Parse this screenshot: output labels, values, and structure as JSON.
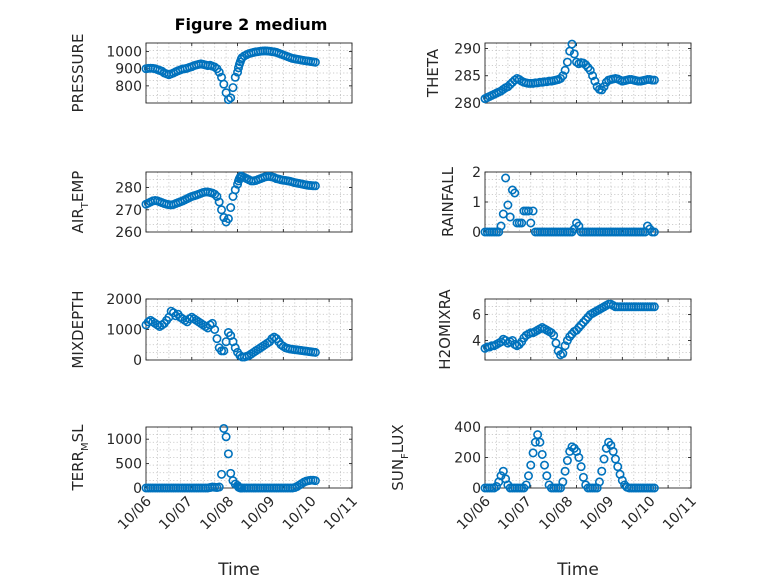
{
  "figure_title": "Figure 2 medium",
  "colors": {
    "marker": "#0072BD",
    "axis": "#262626",
    "grid": "#bfbfbf"
  },
  "chart_data": [
    {
      "id": "pressure",
      "type": "scatter",
      "ylabel": "PRESSURE",
      "ylim": [
        700,
        1050
      ],
      "yticks": [
        800,
        900,
        1000
      ],
      "xlim": [
        0,
        4.5
      ],
      "xticks": [],
      "x": [
        0.0,
        0.05,
        0.1,
        0.15,
        0.2,
        0.25,
        0.3,
        0.35,
        0.4,
        0.45,
        0.5,
        0.55,
        0.6,
        0.65,
        0.7,
        0.75,
        0.8,
        0.85,
        0.9,
        0.95,
        1.0,
        1.05,
        1.1,
        1.15,
        1.2,
        1.25,
        1.3,
        1.35,
        1.4,
        1.45,
        1.5,
        1.55,
        1.6,
        1.65,
        1.7,
        1.75,
        1.8,
        1.85,
        1.9,
        1.95,
        2.0,
        2.02,
        2.04,
        2.06,
        2.08,
        2.1,
        2.15,
        2.2,
        2.25,
        2.3,
        2.35,
        2.4,
        2.45,
        2.5,
        2.55,
        2.6,
        2.65,
        2.7,
        2.75,
        2.8,
        2.85,
        2.9,
        2.95,
        3.0,
        3.05,
        3.1,
        3.15,
        3.2,
        3.25,
        3.3,
        3.35,
        3.4,
        3.45,
        3.5,
        3.55,
        3.6,
        3.65,
        3.7
      ],
      "y": [
        900,
        902,
        903,
        902,
        900,
        895,
        890,
        885,
        875,
        870,
        865,
        870,
        875,
        882,
        888,
        893,
        898,
        900,
        903,
        908,
        912,
        918,
        922,
        925,
        928,
        925,
        922,
        918,
        920,
        915,
        910,
        900,
        880,
        850,
        810,
        760,
        720,
        730,
        790,
        850,
        880,
        905,
        925,
        940,
        955,
        965,
        975,
        982,
        988,
        992,
        995,
        998,
        1000,
        1002,
        1003,
        1004,
        1003,
        1002,
        1000,
        998,
        995,
        990,
        985,
        980,
        975,
        970,
        965,
        960,
        958,
        955,
        953,
        950,
        948,
        946,
        944,
        942,
        940,
        938
      ]
    },
    {
      "id": "theta",
      "type": "scatter",
      "ylabel": "THETA",
      "ylim": [
        280,
        291
      ],
      "yticks": [
        280,
        285,
        290
      ],
      "xlim": [
        0,
        4.5
      ],
      "xticks": [],
      "x": [
        0.0,
        0.05,
        0.1,
        0.15,
        0.2,
        0.25,
        0.3,
        0.35,
        0.4,
        0.45,
        0.5,
        0.55,
        0.6,
        0.65,
        0.7,
        0.75,
        0.8,
        0.85,
        0.9,
        0.95,
        1.0,
        1.05,
        1.1,
        1.15,
        1.2,
        1.25,
        1.3,
        1.35,
        1.4,
        1.45,
        1.5,
        1.55,
        1.6,
        1.65,
        1.7,
        1.75,
        1.8,
        1.85,
        1.9,
        1.95,
        2.0,
        2.05,
        2.1,
        2.15,
        2.2,
        2.25,
        2.3,
        2.35,
        2.4,
        2.45,
        2.5,
        2.55,
        2.6,
        2.65,
        2.7,
        2.75,
        2.8,
        2.85,
        2.9,
        2.95,
        3.0,
        3.05,
        3.1,
        3.15,
        3.2,
        3.25,
        3.3,
        3.35,
        3.4,
        3.45,
        3.5,
        3.55,
        3.6,
        3.65,
        3.7
      ],
      "y": [
        280.8,
        281.0,
        281.2,
        281.4,
        281.6,
        281.8,
        282.0,
        282.2,
        282.5,
        282.8,
        283.0,
        283.4,
        283.8,
        284.2,
        284.5,
        284.3,
        284.0,
        283.8,
        283.7,
        283.6,
        283.6,
        283.6,
        283.7,
        283.7,
        283.8,
        283.8,
        283.9,
        283.9,
        284.0,
        284.0,
        284.1,
        284.2,
        284.3,
        284.5,
        285.0,
        286.0,
        287.5,
        289.5,
        290.8,
        289.0,
        287.5,
        287.2,
        287.4,
        287.3,
        287.0,
        286.5,
        286.0,
        285.0,
        284.0,
        283.0,
        282.5,
        282.4,
        283.0,
        283.8,
        284.2,
        284.3,
        284.4,
        284.5,
        284.4,
        284.2,
        284.0,
        284.1,
        284.2,
        284.3,
        284.3,
        284.2,
        284.1,
        284.0,
        284.0,
        284.1,
        284.2,
        284.3,
        284.3,
        284.2,
        284.2
      ]
    },
    {
      "id": "air_temp",
      "type": "scatter",
      "ylabel_main": "AIR",
      "ylabel_sub": "T",
      "ylabel_rest": "EMP",
      "ylim": [
        260,
        287
      ],
      "yticks": [
        260,
        270,
        280
      ],
      "xlim": [
        0,
        4.5
      ],
      "xticks": [],
      "x": [
        0.0,
        0.05,
        0.1,
        0.15,
        0.2,
        0.25,
        0.3,
        0.35,
        0.4,
        0.45,
        0.5,
        0.55,
        0.6,
        0.65,
        0.7,
        0.75,
        0.8,
        0.85,
        0.9,
        0.95,
        1.0,
        1.05,
        1.1,
        1.15,
        1.2,
        1.25,
        1.3,
        1.35,
        1.4,
        1.45,
        1.5,
        1.55,
        1.6,
        1.65,
        1.7,
        1.75,
        1.8,
        1.85,
        1.9,
        1.95,
        2.0,
        2.02,
        2.04,
        2.06,
        2.08,
        2.1,
        2.15,
        2.2,
        2.25,
        2.3,
        2.35,
        2.4,
        2.45,
        2.5,
        2.55,
        2.6,
        2.65,
        2.7,
        2.75,
        2.8,
        2.85,
        2.9,
        2.95,
        3.0,
        3.05,
        3.1,
        3.15,
        3.2,
        3.25,
        3.3,
        3.35,
        3.4,
        3.45,
        3.5,
        3.55,
        3.6,
        3.65,
        3.7
      ],
      "y": [
        272.5,
        273.0,
        273.5,
        274.0,
        274.2,
        274.0,
        273.6,
        273.2,
        272.8,
        272.5,
        272.3,
        272.2,
        272.4,
        272.8,
        273.2,
        273.6,
        274.0,
        274.5,
        275.0,
        275.5,
        276.0,
        276.3,
        276.6,
        277.0,
        277.4,
        277.8,
        278.0,
        278.0,
        277.8,
        277.5,
        277.0,
        276.0,
        273.5,
        270.0,
        266.5,
        264.5,
        266.0,
        271.0,
        276.0,
        279.0,
        281.5,
        283.0,
        284.0,
        284.8,
        285.2,
        285.0,
        284.5,
        284.0,
        283.5,
        283.0,
        283.0,
        283.2,
        283.6,
        284.0,
        284.4,
        284.8,
        285.0,
        285.0,
        284.8,
        284.5,
        284.0,
        283.8,
        283.5,
        283.3,
        283.2,
        283.0,
        282.8,
        282.5,
        282.2,
        282.0,
        281.8,
        281.6,
        281.4,
        281.2,
        281.0,
        280.9,
        280.8,
        280.8
      ]
    },
    {
      "id": "rainfall",
      "type": "scatter",
      "ylabel": "RAINFALL",
      "ylim": [
        0,
        2
      ],
      "yticks": [
        0,
        1,
        2
      ],
      "xlim": [
        0,
        4.5
      ],
      "xticks": [],
      "x": [
        0.0,
        0.05,
        0.1,
        0.15,
        0.2,
        0.25,
        0.3,
        0.35,
        0.4,
        0.45,
        0.5,
        0.55,
        0.6,
        0.65,
        0.7,
        0.75,
        0.8,
        0.85,
        0.9,
        0.95,
        1.0,
        1.05,
        1.1,
        1.15,
        1.2,
        1.25,
        1.3,
        1.35,
        1.4,
        1.45,
        1.5,
        1.55,
        1.6,
        1.65,
        1.7,
        1.75,
        1.8,
        1.85,
        1.9,
        1.95,
        2.0,
        2.05,
        2.1,
        2.15,
        2.2,
        2.25,
        2.3,
        2.35,
        2.4,
        2.45,
        2.5,
        2.55,
        2.6,
        2.65,
        2.7,
        2.75,
        2.8,
        2.85,
        2.9,
        2.95,
        3.0,
        3.05,
        3.1,
        3.15,
        3.2,
        3.25,
        3.3,
        3.35,
        3.4,
        3.45,
        3.5,
        3.55,
        3.6,
        3.65,
        3.7
      ],
      "y": [
        0,
        0,
        0,
        0,
        0,
        0,
        0,
        0.2,
        0.6,
        1.8,
        0.9,
        0.5,
        1.4,
        1.3,
        0.3,
        0.3,
        0.3,
        0.7,
        0.7,
        0.7,
        0.3,
        0.7,
        0,
        0,
        0,
        0,
        0,
        0,
        0,
        0,
        0,
        0,
        0,
        0,
        0,
        0,
        0,
        0,
        0,
        0.1,
        0.3,
        0.2,
        0,
        0,
        0,
        0,
        0,
        0,
        0,
        0,
        0,
        0,
        0,
        0,
        0,
        0,
        0,
        0,
        0,
        0,
        0,
        0,
        0,
        0,
        0,
        0,
        0,
        0,
        0,
        0,
        0,
        0.2,
        0.1,
        0,
        0
      ]
    },
    {
      "id": "mixdepth",
      "type": "scatter",
      "ylabel": "MIXDEPTH",
      "ylim": [
        0,
        2000
      ],
      "yticks": [
        0,
        1000,
        2000
      ],
      "xlim": [
        0,
        4.5
      ],
      "xticks": [],
      "x": [
        0.0,
        0.05,
        0.1,
        0.15,
        0.2,
        0.25,
        0.3,
        0.35,
        0.4,
        0.45,
        0.5,
        0.55,
        0.6,
        0.65,
        0.7,
        0.75,
        0.8,
        0.85,
        0.9,
        0.95,
        1.0,
        1.05,
        1.1,
        1.15,
        1.2,
        1.25,
        1.3,
        1.35,
        1.4,
        1.45,
        1.5,
        1.55,
        1.6,
        1.65,
        1.7,
        1.75,
        1.8,
        1.85,
        1.9,
        1.95,
        2.0,
        2.05,
        2.1,
        2.15,
        2.2,
        2.25,
        2.3,
        2.35,
        2.4,
        2.45,
        2.5,
        2.55,
        2.6,
        2.65,
        2.7,
        2.75,
        2.8,
        2.85,
        2.9,
        2.95,
        3.0,
        3.05,
        3.1,
        3.15,
        3.2,
        3.25,
        3.3,
        3.35,
        3.4,
        3.45,
        3.5,
        3.55,
        3.6,
        3.65,
        3.7
      ],
      "y": [
        1150,
        1250,
        1300,
        1250,
        1200,
        1150,
        1100,
        1150,
        1200,
        1300,
        1400,
        1600,
        1550,
        1450,
        1500,
        1400,
        1350,
        1300,
        1250,
        1350,
        1400,
        1350,
        1300,
        1250,
        1200,
        1150,
        1100,
        1050,
        1150,
        1200,
        1000,
        700,
        400,
        300,
        300,
        600,
        900,
        800,
        600,
        400,
        250,
        150,
        100,
        100,
        120,
        150,
        200,
        250,
        300,
        350,
        400,
        450,
        500,
        550,
        600,
        700,
        750,
        700,
        600,
        500,
        450,
        400,
        380,
        360,
        350,
        340,
        330,
        320,
        310,
        300,
        290,
        280,
        270,
        260,
        250
      ]
    },
    {
      "id": "h2omixra",
      "type": "scatter",
      "ylabel": "H2OMIXRA",
      "ylim": [
        2.5,
        7.2
      ],
      "yticks": [
        4,
        6
      ],
      "xlim": [
        0,
        4.5
      ],
      "xticks": [],
      "x": [
        0.0,
        0.05,
        0.1,
        0.15,
        0.2,
        0.25,
        0.3,
        0.35,
        0.4,
        0.45,
        0.5,
        0.55,
        0.6,
        0.65,
        0.7,
        0.75,
        0.8,
        0.85,
        0.9,
        0.95,
        1.0,
        1.05,
        1.1,
        1.15,
        1.2,
        1.25,
        1.3,
        1.35,
        1.4,
        1.45,
        1.5,
        1.55,
        1.6,
        1.65,
        1.7,
        1.75,
        1.8,
        1.85,
        1.9,
        1.95,
        2.0,
        2.05,
        2.1,
        2.15,
        2.2,
        2.25,
        2.3,
        2.35,
        2.4,
        2.45,
        2.5,
        2.55,
        2.6,
        2.65,
        2.7,
        2.75,
        2.8,
        2.85,
        2.9,
        2.95,
        3.0,
        3.05,
        3.1,
        3.15,
        3.2,
        3.25,
        3.3,
        3.35,
        3.4,
        3.45,
        3.5,
        3.55,
        3.6,
        3.65,
        3.7
      ],
      "y": [
        3.4,
        3.5,
        3.5,
        3.6,
        3.6,
        3.7,
        3.8,
        3.9,
        4.1,
        4.0,
        3.8,
        3.9,
        4.0,
        3.7,
        3.6,
        3.7,
        3.9,
        4.2,
        4.4,
        4.5,
        4.6,
        4.6,
        4.7,
        4.8,
        4.9,
        5.0,
        4.9,
        4.8,
        4.7,
        4.6,
        4.4,
        3.8,
        3.2,
        2.9,
        3.0,
        3.6,
        4.0,
        4.3,
        4.5,
        4.7,
        4.8,
        5.0,
        5.2,
        5.4,
        5.6,
        5.8,
        6.0,
        6.1,
        6.2,
        6.3,
        6.4,
        6.5,
        6.6,
        6.7,
        6.8,
        6.8,
        6.7,
        6.6,
        6.6,
        6.6,
        6.6,
        6.6,
        6.6,
        6.6,
        6.6,
        6.6,
        6.6,
        6.6,
        6.6,
        6.6,
        6.6,
        6.6,
        6.6,
        6.6,
        6.6
      ]
    },
    {
      "id": "terr_msl",
      "type": "scatter",
      "ylabel_main": "TERR",
      "ylabel_sub": "M",
      "ylabel_rest": "SL",
      "ylim": [
        0,
        1250
      ],
      "yticks": [
        0,
        500,
        1000
      ],
      "xlim": [
        0,
        4.5
      ],
      "xticks": [
        "10/06",
        "10/07",
        "10/08",
        "10/09",
        "10/10",
        "10/11"
      ],
      "xlabel": "Time",
      "x": [
        0.0,
        0.05,
        0.1,
        0.15,
        0.2,
        0.25,
        0.3,
        0.35,
        0.4,
        0.45,
        0.5,
        0.55,
        0.6,
        0.65,
        0.7,
        0.75,
        0.8,
        0.85,
        0.9,
        0.95,
        1.0,
        1.05,
        1.1,
        1.15,
        1.2,
        1.25,
        1.3,
        1.35,
        1.4,
        1.45,
        1.5,
        1.55,
        1.6,
        1.65,
        1.7,
        1.75,
        1.8,
        1.85,
        1.9,
        1.95,
        2.0,
        2.02,
        2.04,
        2.06,
        2.08,
        2.1,
        2.15,
        2.2,
        2.25,
        2.3,
        2.35,
        2.4,
        2.45,
        2.5,
        2.55,
        2.6,
        2.65,
        2.7,
        2.75,
        2.8,
        2.85,
        2.9,
        2.95,
        3.0,
        3.05,
        3.1,
        3.15,
        3.2,
        3.25,
        3.3,
        3.35,
        3.4,
        3.45,
        3.5,
        3.55,
        3.6,
        3.65,
        3.7
      ],
      "y": [
        0,
        0,
        0,
        0,
        0,
        0,
        0,
        0,
        0,
        0,
        0,
        0,
        0,
        0,
        0,
        0,
        0,
        0,
        0,
        0,
        0,
        0,
        0,
        0,
        0,
        0,
        0,
        0,
        10,
        20,
        15,
        10,
        20,
        280,
        1220,
        1050,
        700,
        300,
        150,
        80,
        50,
        20,
        10,
        0,
        0,
        0,
        0,
        0,
        0,
        0,
        0,
        0,
        0,
        0,
        0,
        0,
        0,
        0,
        0,
        0,
        0,
        0,
        0,
        0,
        0,
        0,
        0,
        0,
        10,
        30,
        60,
        90,
        120,
        140,
        150,
        160,
        160,
        150
      ]
    },
    {
      "id": "sun_flux",
      "type": "scatter",
      "ylabel_main": "SUN",
      "ylabel_sub": "F",
      "ylabel_rest": "LUX",
      "ylim": [
        0,
        400
      ],
      "yticks": [
        0,
        200,
        400
      ],
      "xlim": [
        0,
        4.5
      ],
      "xticks": [
        "10/06",
        "10/07",
        "10/08",
        "10/09",
        "10/10",
        "10/11"
      ],
      "xlabel": "Time",
      "x": [
        0.0,
        0.05,
        0.1,
        0.15,
        0.2,
        0.25,
        0.3,
        0.35,
        0.4,
        0.45,
        0.5,
        0.55,
        0.6,
        0.65,
        0.7,
        0.75,
        0.8,
        0.85,
        0.9,
        0.95,
        1.0,
        1.05,
        1.1,
        1.15,
        1.2,
        1.25,
        1.3,
        1.35,
        1.4,
        1.45,
        1.5,
        1.55,
        1.6,
        1.65,
        1.7,
        1.75,
        1.8,
        1.85,
        1.9,
        1.95,
        2.0,
        2.05,
        2.1,
        2.15,
        2.2,
        2.25,
        2.3,
        2.35,
        2.4,
        2.45,
        2.5,
        2.55,
        2.6,
        2.65,
        2.7,
        2.75,
        2.8,
        2.85,
        2.9,
        2.95,
        3.0,
        3.05,
        3.1,
        3.15,
        3.2,
        3.25,
        3.3,
        3.35,
        3.4,
        3.45,
        3.5,
        3.55,
        3.6,
        3.65,
        3.7
      ],
      "y": [
        0,
        0,
        0,
        0,
        0,
        10,
        40,
        80,
        110,
        60,
        20,
        0,
        0,
        0,
        0,
        0,
        0,
        0,
        20,
        80,
        150,
        230,
        300,
        350,
        300,
        220,
        150,
        80,
        20,
        0,
        0,
        0,
        0,
        0,
        40,
        110,
        180,
        240,
        270,
        260,
        240,
        200,
        140,
        70,
        20,
        0,
        0,
        0,
        0,
        0,
        40,
        110,
        190,
        260,
        300,
        280,
        240,
        190,
        140,
        90,
        50,
        20,
        5,
        0,
        0,
        0,
        0,
        0,
        0,
        0,
        0,
        0,
        0,
        0,
        0
      ]
    }
  ]
}
